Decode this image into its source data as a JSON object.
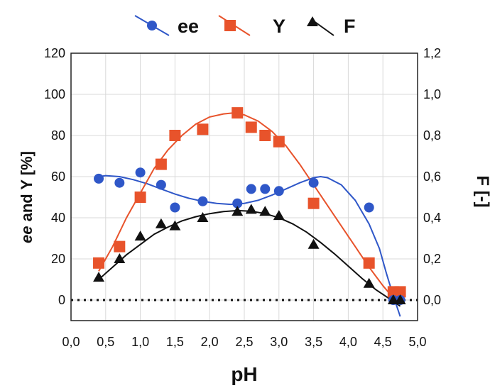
{
  "chart_data": {
    "type": "scatter",
    "xlabel": "pH",
    "ylabel_left": "ee and Y [%]",
    "ylabel_left_italic_part": "ee",
    "ylabel_left_rest": " and Y [%]",
    "ylabel_right": "F [-]",
    "xlim": [
      0.0,
      5.0
    ],
    "ylim_left": [
      -10,
      120
    ],
    "ylim_right": [
      -0.1,
      1.2
    ],
    "x_ticks": [
      "0,0",
      "0,5",
      "1,0",
      "1,5",
      "2,0",
      "2,5",
      "3,0",
      "3,5",
      "4,0",
      "4,5",
      "5,0"
    ],
    "y_left_ticks": [
      "0",
      "20",
      "40",
      "60",
      "80",
      "100",
      "120"
    ],
    "y_right_ticks": [
      "0,0",
      "0,2",
      "0,4",
      "0,6",
      "0,8",
      "1,0",
      "1,2"
    ],
    "grid": true,
    "zero_line": "dotted",
    "legend_position": "top",
    "series": [
      {
        "name": "ee",
        "axis": "left",
        "marker": "circle",
        "color": "#2f57c8",
        "points": [
          [
            0.4,
            59
          ],
          [
            0.7,
            57
          ],
          [
            1.0,
            62
          ],
          [
            1.3,
            56
          ],
          [
            1.5,
            45
          ],
          [
            1.9,
            48
          ],
          [
            2.4,
            47
          ],
          [
            2.6,
            54
          ],
          [
            2.8,
            54
          ],
          [
            3.0,
            53
          ],
          [
            3.5,
            57
          ],
          [
            4.3,
            45
          ],
          [
            4.65,
            0
          ],
          [
            4.75,
            0
          ]
        ],
        "fit": [
          [
            0.4,
            60
          ],
          [
            0.5,
            60.5
          ],
          [
            0.7,
            60
          ],
          [
            0.9,
            58.5
          ],
          [
            1.1,
            56.5
          ],
          [
            1.3,
            54
          ],
          [
            1.5,
            51.5
          ],
          [
            1.7,
            49.5
          ],
          [
            1.9,
            48
          ],
          [
            2.1,
            47
          ],
          [
            2.3,
            46.5
          ],
          [
            2.5,
            47
          ],
          [
            2.7,
            48.5
          ],
          [
            2.9,
            51
          ],
          [
            3.1,
            54
          ],
          [
            3.3,
            57
          ],
          [
            3.5,
            59.5
          ],
          [
            3.6,
            60
          ],
          [
            3.7,
            59.5
          ],
          [
            3.9,
            56
          ],
          [
            4.1,
            48.5
          ],
          [
            4.3,
            37
          ],
          [
            4.45,
            25
          ],
          [
            4.55,
            13
          ],
          [
            4.65,
            2
          ],
          [
            4.75,
            -8
          ]
        ]
      },
      {
        "name": "Y",
        "axis": "left",
        "marker": "square",
        "color": "#e8532b",
        "points": [
          [
            0.4,
            18
          ],
          [
            0.7,
            26
          ],
          [
            1.0,
            50
          ],
          [
            1.3,
            66
          ],
          [
            1.5,
            80
          ],
          [
            1.9,
            83
          ],
          [
            2.4,
            91
          ],
          [
            2.6,
            84
          ],
          [
            2.8,
            80
          ],
          [
            3.0,
            77
          ],
          [
            3.5,
            47
          ],
          [
            4.3,
            18
          ],
          [
            4.65,
            4
          ],
          [
            4.75,
            4
          ]
        ],
        "fit": [
          [
            0.4,
            14
          ],
          [
            0.6,
            26
          ],
          [
            0.8,
            40
          ],
          [
            1.0,
            52
          ],
          [
            1.2,
            64
          ],
          [
            1.4,
            73
          ],
          [
            1.6,
            80
          ],
          [
            1.8,
            85.5
          ],
          [
            2.0,
            89
          ],
          [
            2.2,
            90.5
          ],
          [
            2.35,
            91
          ],
          [
            2.5,
            90
          ],
          [
            2.7,
            87
          ],
          [
            2.9,
            82
          ],
          [
            3.1,
            75
          ],
          [
            3.3,
            66
          ],
          [
            3.5,
            56
          ],
          [
            3.7,
            46
          ],
          [
            3.9,
            36
          ],
          [
            4.1,
            26
          ],
          [
            4.3,
            16
          ],
          [
            4.5,
            7
          ],
          [
            4.65,
            1
          ],
          [
            4.75,
            -2
          ]
        ]
      },
      {
        "name": "F",
        "axis": "right",
        "marker": "triangle",
        "color": "#111111",
        "points": [
          [
            0.4,
            0.11
          ],
          [
            0.7,
            0.2
          ],
          [
            1.0,
            0.31
          ],
          [
            1.3,
            0.37
          ],
          [
            1.5,
            0.36
          ],
          [
            1.9,
            0.4
          ],
          [
            2.4,
            0.43
          ],
          [
            2.6,
            0.44
          ],
          [
            2.8,
            0.43
          ],
          [
            3.0,
            0.41
          ],
          [
            3.5,
            0.27
          ],
          [
            4.3,
            0.08
          ],
          [
            4.65,
            0.0
          ],
          [
            4.75,
            0.0
          ]
        ],
        "fit": [
          [
            0.4,
            0.1
          ],
          [
            0.6,
            0.16
          ],
          [
            0.8,
            0.22
          ],
          [
            1.0,
            0.27
          ],
          [
            1.2,
            0.32
          ],
          [
            1.4,
            0.355
          ],
          [
            1.6,
            0.385
          ],
          [
            1.8,
            0.405
          ],
          [
            2.0,
            0.42
          ],
          [
            2.2,
            0.43
          ],
          [
            2.4,
            0.435
          ],
          [
            2.6,
            0.432
          ],
          [
            2.8,
            0.42
          ],
          [
            3.0,
            0.4
          ],
          [
            3.2,
            0.37
          ],
          [
            3.4,
            0.33
          ],
          [
            3.6,
            0.28
          ],
          [
            3.8,
            0.225
          ],
          [
            4.0,
            0.165
          ],
          [
            4.2,
            0.105
          ],
          [
            4.4,
            0.05
          ],
          [
            4.6,
            0.005
          ],
          [
            4.75,
            -0.03
          ]
        ]
      }
    ]
  }
}
